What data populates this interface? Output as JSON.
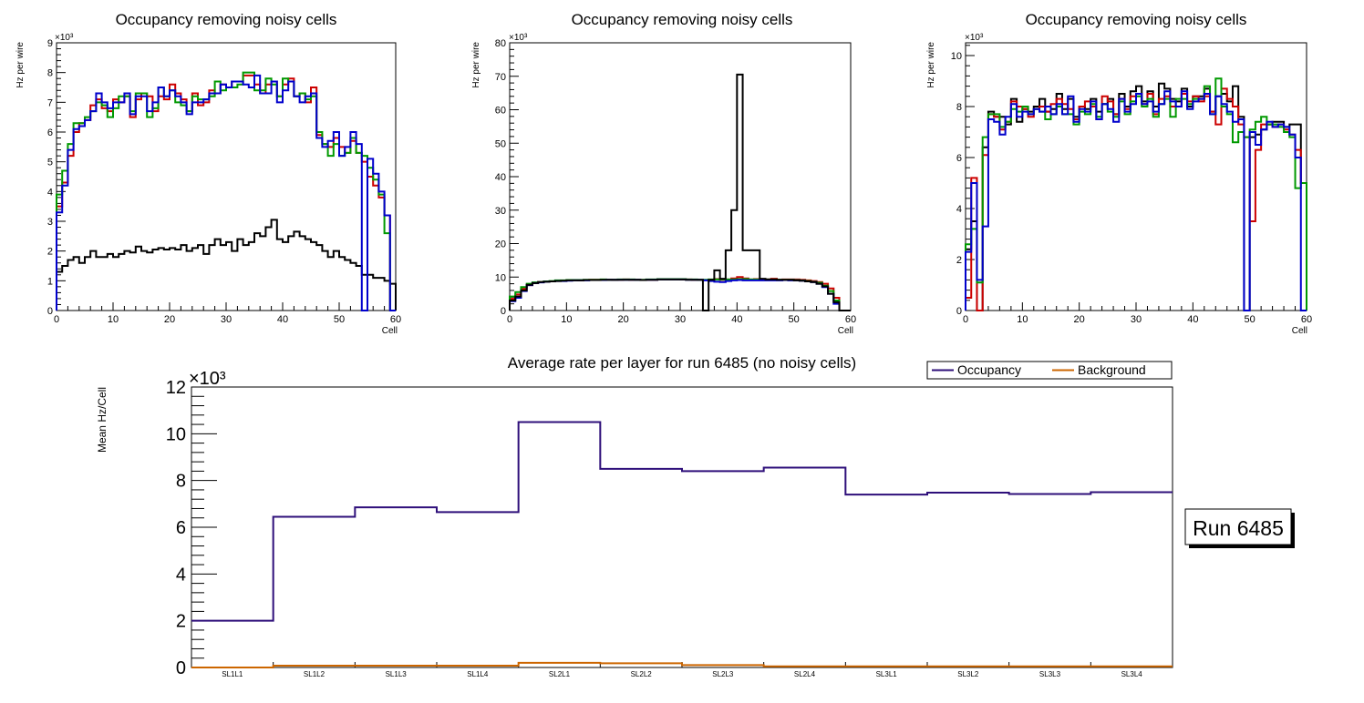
{
  "chart_data": [
    {
      "id": "p1",
      "type": "histogram-step",
      "title": "Occupancy removing noisy cells",
      "xlabel": "Cell",
      "ylabel": "Hz per wire",
      "exponent": "×10³",
      "xlim": [
        0,
        60
      ],
      "ylim": [
        0,
        9000
      ],
      "xticks": [
        0,
        10,
        20,
        30,
        40,
        50,
        60
      ],
      "yticks": [
        0,
        1000,
        2000,
        3000,
        4000,
        5000,
        6000,
        7000,
        8000,
        9000
      ],
      "ytick_labels": [
        "0",
        "1",
        "2",
        "3",
        "4",
        "5",
        "6",
        "7",
        "8",
        "9"
      ],
      "xtick_labels": [
        "0",
        "10",
        "20",
        "30",
        "40",
        "50",
        "60"
      ],
      "series": [
        {
          "name": "layer-black",
          "color": "#000000",
          "values": [
            1300,
            1500,
            1700,
            1800,
            1600,
            1800,
            2000,
            1800,
            1800,
            1900,
            1800,
            1900,
            2000,
            1950,
            2150,
            2000,
            1950,
            2050,
            2100,
            2050,
            2100,
            2050,
            2200,
            2000,
            2100,
            2200,
            1900,
            2200,
            2400,
            2200,
            2300,
            2000,
            2400,
            2200,
            2300,
            2600,
            2500,
            2800,
            3050,
            2400,
            2300,
            2500,
            2650,
            2500,
            2400,
            2300,
            2200,
            2000,
            1800,
            2000,
            1800,
            1700,
            1600,
            1500,
            1200,
            1200,
            1100,
            1100,
            1000,
            900
          ]
        },
        {
          "name": "layer-red",
          "color": "#cc0000",
          "values": [
            3500,
            4300,
            5200,
            6000,
            6300,
            6400,
            6900,
            7100,
            6800,
            6700,
            7100,
            7000,
            7200,
            6500,
            7100,
            7300,
            7200,
            6700,
            7200,
            7100,
            7600,
            7300,
            7100,
            6700,
            7300,
            6900,
            7000,
            7400,
            7300,
            7600,
            7500,
            7700,
            7700,
            7900,
            7900,
            7600,
            7300,
            7600,
            7700,
            7200,
            7600,
            7800,
            7200,
            7300,
            7000,
            7500,
            5900,
            5600,
            5500,
            5800,
            5500,
            5300,
            5700,
            5300,
            5000,
            4500,
            4200,
            3800,
            3200,
            0
          ]
        },
        {
          "name": "layer-green",
          "color": "#009900",
          "values": [
            3900,
            4700,
            5600,
            6300,
            6300,
            6500,
            6700,
            7000,
            6900,
            6500,
            6800,
            7200,
            7200,
            6700,
            7300,
            7300,
            6500,
            6800,
            7500,
            7200,
            7400,
            7000,
            6900,
            6700,
            7200,
            7100,
            7100,
            7200,
            7700,
            7400,
            7500,
            7500,
            7600,
            8000,
            8000,
            7400,
            7400,
            7800,
            7600,
            7200,
            7800,
            7700,
            7200,
            7300,
            7100,
            7200,
            6000,
            5600,
            5200,
            5600,
            5200,
            5300,
            5800,
            5300,
            5200,
            4800,
            4400,
            3900,
            2600,
            0
          ]
        },
        {
          "name": "layer-blue",
          "color": "#0000cc",
          "values": [
            3300,
            4200,
            5400,
            6100,
            6200,
            6400,
            6700,
            7300,
            7000,
            6800,
            7000,
            7000,
            7300,
            6600,
            7200,
            7200,
            6700,
            7000,
            7500,
            7200,
            7400,
            7200,
            7000,
            6600,
            7000,
            7000,
            7100,
            7300,
            7300,
            7600,
            7500,
            7700,
            7700,
            7600,
            7500,
            7900,
            7300,
            7300,
            7700,
            7000,
            7400,
            7700,
            7200,
            7000,
            7200,
            7300,
            5800,
            5500,
            5700,
            6000,
            5200,
            5500,
            6000,
            5600,
            0,
            5100,
            4600,
            4000,
            3200,
            0
          ]
        }
      ]
    },
    {
      "id": "p2",
      "type": "histogram-step",
      "title": "Occupancy removing noisy cells",
      "xlabel": "Cell",
      "ylabel": "Hz per wire",
      "exponent": "×10³",
      "xlim": [
        0,
        60
      ],
      "ylim": [
        0,
        80000
      ],
      "xticks": [
        0,
        10,
        20,
        30,
        40,
        50,
        60
      ],
      "yticks": [
        0,
        10000,
        20000,
        30000,
        40000,
        50000,
        60000,
        70000,
        80000
      ],
      "ytick_labels": [
        "0",
        "10",
        "20",
        "30",
        "40",
        "50",
        "60",
        "70",
        "80"
      ],
      "xtick_labels": [
        "0",
        "10",
        "20",
        "30",
        "40",
        "50",
        "60"
      ],
      "series": [
        {
          "name": "layer-red",
          "color": "#cc0000",
          "values": [
            3500,
            4800,
            6500,
            7600,
            8200,
            8500,
            8700,
            8700,
            8900,
            8900,
            9000,
            9100,
            9000,
            9100,
            9200,
            9200,
            9200,
            9200,
            9100,
            9200,
            9300,
            9200,
            9200,
            9100,
            9200,
            9200,
            9400,
            9400,
            9400,
            9400,
            9300,
            9300,
            9200,
            9200,
            9100,
            9200,
            9400,
            9200,
            9300,
            9600,
            10000,
            9600,
            9300,
            9400,
            9300,
            9300,
            9500,
            9200,
            9300,
            9300,
            9300,
            9200,
            9000,
            8800,
            8500,
            8000,
            6600,
            3800,
            0,
            0
          ]
        },
        {
          "name": "layer-green",
          "color": "#009900",
          "values": [
            4200,
            5500,
            7000,
            8000,
            8400,
            8500,
            8700,
            8800,
            9000,
            9000,
            9100,
            9100,
            9100,
            9200,
            9200,
            9200,
            9300,
            9200,
            9200,
            9300,
            9300,
            9300,
            9200,
            9200,
            9300,
            9300,
            9400,
            9400,
            9400,
            9400,
            9400,
            9300,
            9300,
            9200,
            9200,
            9300,
            9300,
            9300,
            9300,
            9300,
            9400,
            9400,
            9300,
            9300,
            9300,
            9300,
            9300,
            9200,
            9200,
            9200,
            9100,
            9000,
            8800,
            8600,
            8300,
            7400,
            5800,
            3000,
            0,
            0
          ]
        },
        {
          "name": "layer-blue",
          "color": "#0000cc",
          "values": [
            2800,
            3800,
            5800,
            7600,
            8200,
            8400,
            8600,
            8700,
            8800,
            8800,
            8900,
            9000,
            9000,
            9000,
            9100,
            9100,
            9100,
            9200,
            9200,
            9200,
            9200,
            9200,
            9200,
            9100,
            9200,
            9200,
            9300,
            9300,
            9300,
            9300,
            9300,
            9200,
            9200,
            9200,
            9000,
            8800,
            8600,
            8500,
            8800,
            9000,
            9100,
            9000,
            9000,
            9000,
            9000,
            9000,
            9000,
            9000,
            9100,
            9000,
            9000,
            8900,
            8700,
            8500,
            8000,
            7000,
            5000,
            2000,
            0,
            0
          ]
        },
        {
          "name": "layer-black",
          "color": "#000000",
          "values": [
            3000,
            4200,
            6000,
            7700,
            8200,
            8500,
            8600,
            8700,
            8800,
            8900,
            9000,
            9000,
            9000,
            9100,
            9100,
            9100,
            9200,
            9200,
            9200,
            9200,
            9200,
            9200,
            9200,
            9100,
            9200,
            9200,
            9300,
            9300,
            9300,
            9300,
            9300,
            9200,
            9200,
            9200,
            0,
            9200,
            12000,
            9500,
            18000,
            30000,
            70500,
            18000,
            18000,
            18000,
            9500,
            9300,
            9300,
            9200,
            9200,
            9200,
            9000,
            8900,
            8700,
            8500,
            8000,
            7200,
            5000,
            2500,
            0,
            0
          ]
        }
      ]
    },
    {
      "id": "p3",
      "type": "histogram-step",
      "title": "Occupancy removing noisy cells",
      "xlabel": "Cell",
      "ylabel": "Hz per wire",
      "exponent": "×10³",
      "xlim": [
        0,
        60
      ],
      "ylim": [
        0,
        10500
      ],
      "xticks": [
        0,
        10,
        20,
        30,
        40,
        50,
        60
      ],
      "yticks": [
        0,
        2000,
        4000,
        6000,
        8000,
        10000
      ],
      "ytick_labels": [
        "0",
        "2",
        "4",
        "6",
        "8",
        "10"
      ],
      "xtick_labels": [
        "0",
        "10",
        "20",
        "30",
        "40",
        "50",
        "60"
      ],
      "series": [
        {
          "name": "layer-black",
          "color": "#000000",
          "values": [
            2400,
            3500,
            0,
            6400,
            7800,
            7600,
            7600,
            7300,
            8300,
            7400,
            7900,
            7800,
            8000,
            8300,
            7800,
            7900,
            8500,
            7900,
            8300,
            7600,
            8000,
            7900,
            8300,
            7800,
            8100,
            8300,
            7700,
            8500,
            8000,
            8600,
            8800,
            8200,
            8600,
            8000,
            8900,
            8700,
            8300,
            8200,
            8700,
            8000,
            8400,
            8400,
            8700,
            7800,
            8400,
            8500,
            8200,
            8800,
            7600,
            0,
            6800,
            6900,
            7100,
            7300,
            7400,
            7400,
            7200,
            7300,
            7300,
            5000
          ]
        },
        {
          "name": "layer-red",
          "color": "#cc0000",
          "values": [
            500,
            5200,
            0,
            6100,
            7700,
            7600,
            7100,
            7400,
            8200,
            8000,
            7900,
            7600,
            7900,
            8000,
            7800,
            8100,
            8300,
            8100,
            7900,
            7500,
            8000,
            8200,
            8000,
            7500,
            8400,
            8200,
            7700,
            8300,
            7900,
            8400,
            8500,
            8100,
            8500,
            7700,
            8300,
            8400,
            8000,
            8000,
            8500,
            8200,
            8400,
            8200,
            8400,
            7800,
            7300,
            8700,
            8300,
            8000,
            7300,
            6800,
            3500,
            6300,
            7300,
            7300,
            7200,
            7300,
            7100,
            6900,
            6300,
            5000
          ]
        },
        {
          "name": "layer-green",
          "color": "#009900",
          "values": [
            2600,
            3200,
            1100,
            6800,
            7700,
            7700,
            7200,
            7400,
            7900,
            7800,
            8000,
            7700,
            7900,
            7800,
            7500,
            7700,
            8000,
            7700,
            7700,
            7300,
            7800,
            7700,
            8100,
            7600,
            8100,
            7800,
            7600,
            8200,
            7700,
            8200,
            8400,
            8000,
            8300,
            7600,
            8100,
            8300,
            7600,
            8300,
            8300,
            8100,
            8300,
            8300,
            8800,
            7700,
            9100,
            8000,
            7700,
            6600,
            7000,
            6800,
            7100,
            7400,
            7600,
            7300,
            7300,
            7200,
            7000,
            6800,
            4800,
            5000
          ]
        },
        {
          "name": "layer-blue",
          "color": "#0000cc",
          "values": [
            2300,
            5000,
            1200,
            3300,
            7500,
            7400,
            6900,
            7600,
            8100,
            7600,
            7800,
            7700,
            7900,
            7800,
            8000,
            7700,
            8100,
            7700,
            8400,
            7400,
            7900,
            7800,
            8200,
            7500,
            8100,
            7900,
            7400,
            8300,
            7800,
            8100,
            8500,
            8100,
            8200,
            7800,
            8100,
            8600,
            8200,
            8000,
            8600,
            7900,
            8200,
            8300,
            8500,
            7700,
            8400,
            8100,
            7800,
            7400,
            7500,
            0,
            7000,
            6500,
            7100,
            7400,
            7200,
            7300,
            7200,
            6900,
            6000,
            0
          ]
        }
      ]
    },
    {
      "id": "p4",
      "type": "step",
      "title": "Average rate per layer for run 6485 (no noisy cells)",
      "xlabel": "",
      "ylabel": "Mean Hz/Cell",
      "exponent": "×10³",
      "categories": [
        "SL1L1",
        "SL1L2",
        "SL1L3",
        "SL1L4",
        "SL2L1",
        "SL2L2",
        "SL2L3",
        "SL2L4",
        "SL3L1",
        "SL3L2",
        "SL3L3",
        "SL3L4"
      ],
      "ylim": [
        0,
        12000
      ],
      "yticks": [
        0,
        2000,
        4000,
        6000,
        8000,
        10000,
        12000
      ],
      "ytick_labels": [
        "0",
        "2",
        "4",
        "6",
        "8",
        "10",
        "12"
      ],
      "legend_position": "top-right",
      "series": [
        {
          "name": "Occupancy",
          "color": "#2e0f7a",
          "values": [
            2000,
            6450,
            6850,
            6650,
            10500,
            8500,
            8400,
            8550,
            7400,
            7480,
            7420,
            7500
          ]
        },
        {
          "name": "Background",
          "color": "#cc6600",
          "values": [
            0,
            80,
            80,
            80,
            200,
            180,
            100,
            50,
            50,
            50,
            50,
            50
          ]
        }
      ]
    }
  ],
  "run_label": "Run 6485"
}
